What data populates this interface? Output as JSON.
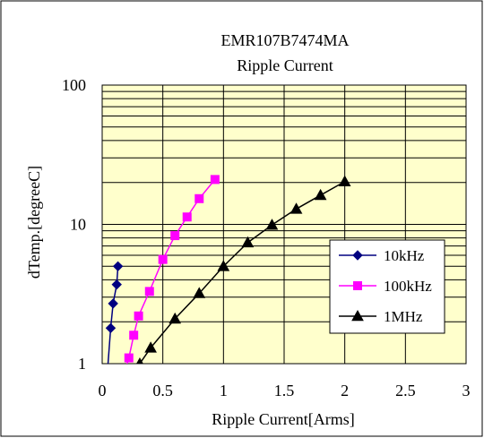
{
  "chart_data": {
    "type": "line",
    "title": "EMR107B7474MA",
    "subtitle": "Ripple Current",
    "xlabel": "Ripple Current[Arms]",
    "ylabel": "dTemp.[degreeC]",
    "xlim": [
      0,
      3
    ],
    "ylim": [
      1,
      100
    ],
    "y_scale": "log",
    "grid": true,
    "legend_position": "right",
    "x_ticks": [
      "0",
      "0.5",
      "1",
      "1.5",
      "2",
      "2.5",
      "3"
    ],
    "y_ticks": [
      "1",
      "10",
      "100"
    ],
    "series": [
      {
        "name": "10kHz",
        "color": "#000080",
        "marker": "diamond",
        "points": [
          [
            0.04,
            0.8
          ],
          [
            0.07,
            1.8
          ],
          [
            0.09,
            2.7
          ],
          [
            0.12,
            3.7
          ],
          [
            0.13,
            5.0
          ]
        ]
      },
      {
        "name": "100kHz",
        "color": "#FF00FF",
        "marker": "square",
        "points": [
          [
            0.17,
            0.8
          ],
          [
            0.22,
            1.1
          ],
          [
            0.26,
            1.6
          ],
          [
            0.3,
            2.2
          ],
          [
            0.39,
            3.3
          ],
          [
            0.5,
            5.6
          ],
          [
            0.6,
            8.3
          ],
          [
            0.7,
            11.3
          ],
          [
            0.8,
            15.3
          ],
          [
            0.93,
            21.0
          ]
        ]
      },
      {
        "name": "1MHz",
        "color": "#000000",
        "marker": "triangle",
        "points": [
          [
            0.29,
            0.9
          ],
          [
            0.31,
            1.0
          ],
          [
            0.4,
            1.3
          ],
          [
            0.6,
            2.1
          ],
          [
            0.8,
            3.2
          ],
          [
            1.0,
            5.0
          ],
          [
            1.2,
            7.4
          ],
          [
            1.4,
            9.9
          ],
          [
            1.6,
            12.9
          ],
          [
            1.8,
            16.2
          ],
          [
            2.0,
            20.3
          ]
        ]
      }
    ]
  }
}
